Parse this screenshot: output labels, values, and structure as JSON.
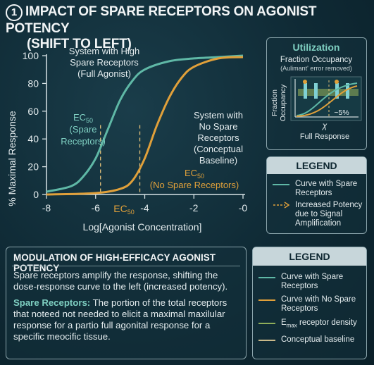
{
  "title": {
    "number": "1",
    "line1": "IMPACT OF SPARE RECEPTORS ON AGONIST POTENCY",
    "line2": "(SHIFT TO LEFT)"
  },
  "colors": {
    "spare": "#5fb8a6",
    "nospare": "#e0a03a",
    "background": "#0f2a35",
    "panel_header": "#c7d6da"
  },
  "main_chart": {
    "ylabel": "% Maximal Response",
    "xlabel": "Log[Agonist Concentration]",
    "x_ticks": [
      "-8",
      "-6",
      "-4",
      "-2",
      "-0"
    ],
    "y_ticks": [
      "0",
      "20",
      "40",
      "60",
      "80",
      "100"
    ],
    "ec50_tick": "EC",
    "ec50_tick_sub": "50",
    "annotations": {
      "high_line1": "System with High",
      "high_line2": "Spare Receptors",
      "high_line3": "(Full Agonist)",
      "ec50_spare_line1": "EC",
      "ec50_spare_sub": "50",
      "ec50_spare_line2": "(Spare",
      "ec50_spare_line3": "Receptors)",
      "nospare_line1": "System with",
      "nospare_line2": "No Spare",
      "nospare_line3": "Receptors",
      "nospare_line4": "(Conceptual",
      "nospare_line5": "Baseline)",
      "ec50_nospare_line1": "EC",
      "ec50_nospare_sub": "50",
      "ec50_nospare_line2": "(No Spare Receptors)"
    }
  },
  "chart_data": {
    "type": "line",
    "title": "",
    "xlabel": "Log[Agonist Concentration]",
    "ylabel": "% Maximal Response",
    "xlim": [
      -8,
      0
    ],
    "ylim": [
      0,
      100
    ],
    "series": [
      {
        "name": "Curve with Spare Receptors",
        "x": [
          -8,
          -7,
          -6.5,
          -6,
          -5.5,
          -5,
          -4.5,
          -4,
          -3,
          -2,
          -1,
          0
        ],
        "values": [
          2,
          6,
          13,
          26,
          47,
          68,
          82,
          90,
          96,
          98,
          99,
          100
        ]
      },
      {
        "name": "Curve with No Spare Receptors",
        "x": [
          -8,
          -6,
          -5,
          -4.5,
          -4,
          -3.5,
          -3,
          -2.5,
          -2,
          -1,
          0
        ],
        "values": [
          0,
          1,
          4,
          10,
          26,
          50,
          70,
          84,
          92,
          98,
          99
        ]
      }
    ],
    "ec50": {
      "spare": -5.8,
      "nospare": -4.2
    }
  },
  "utilization": {
    "title": "Utilization",
    "subtitle": "Fraction Occupancy",
    "subtitle2": "(Aulimant' error removed)",
    "ylabel_line1": "Fraction",
    "ylabel_line2": "Occupancy",
    "xlabel": "χ",
    "pct": "~5%",
    "caption": "Full Response"
  },
  "legend_top": {
    "title": "LEGEND",
    "items": [
      {
        "label": "Curve with Spare Receptors",
        "style": "solid",
        "color": "#5fb8a6"
      },
      {
        "label": "Increased Potency due to Signal Amplification",
        "style": "arrow",
        "color": "#e0a03a"
      }
    ]
  },
  "modulation": {
    "title": "MODULATION OF HIGH-EFFICACY AGONIST POTENCY",
    "para1": "Spare receptors amplify the response, shifting the dose-response curve to the left (increased potency).",
    "term": "Spare Receptors:",
    "para2": " The portion of the total receptors that noteed not needed to elicit a maximal maxilular response for a partio full agonital response for a specific meocific tissue."
  },
  "legend_bottom": {
    "title": "LEGEND",
    "items": [
      {
        "label": "Curve with Spare Receptors",
        "color": "#5fb8a6"
      },
      {
        "label": "Curve with No Spare Receptors",
        "color": "#e0a03a"
      },
      {
        "label_prefix": "E",
        "label_sub": "max",
        "label_suffix": " receptor density",
        "color": "#8fae5a"
      },
      {
        "label": "Conceptual baseline",
        "color": "#c9b98a"
      }
    ]
  }
}
